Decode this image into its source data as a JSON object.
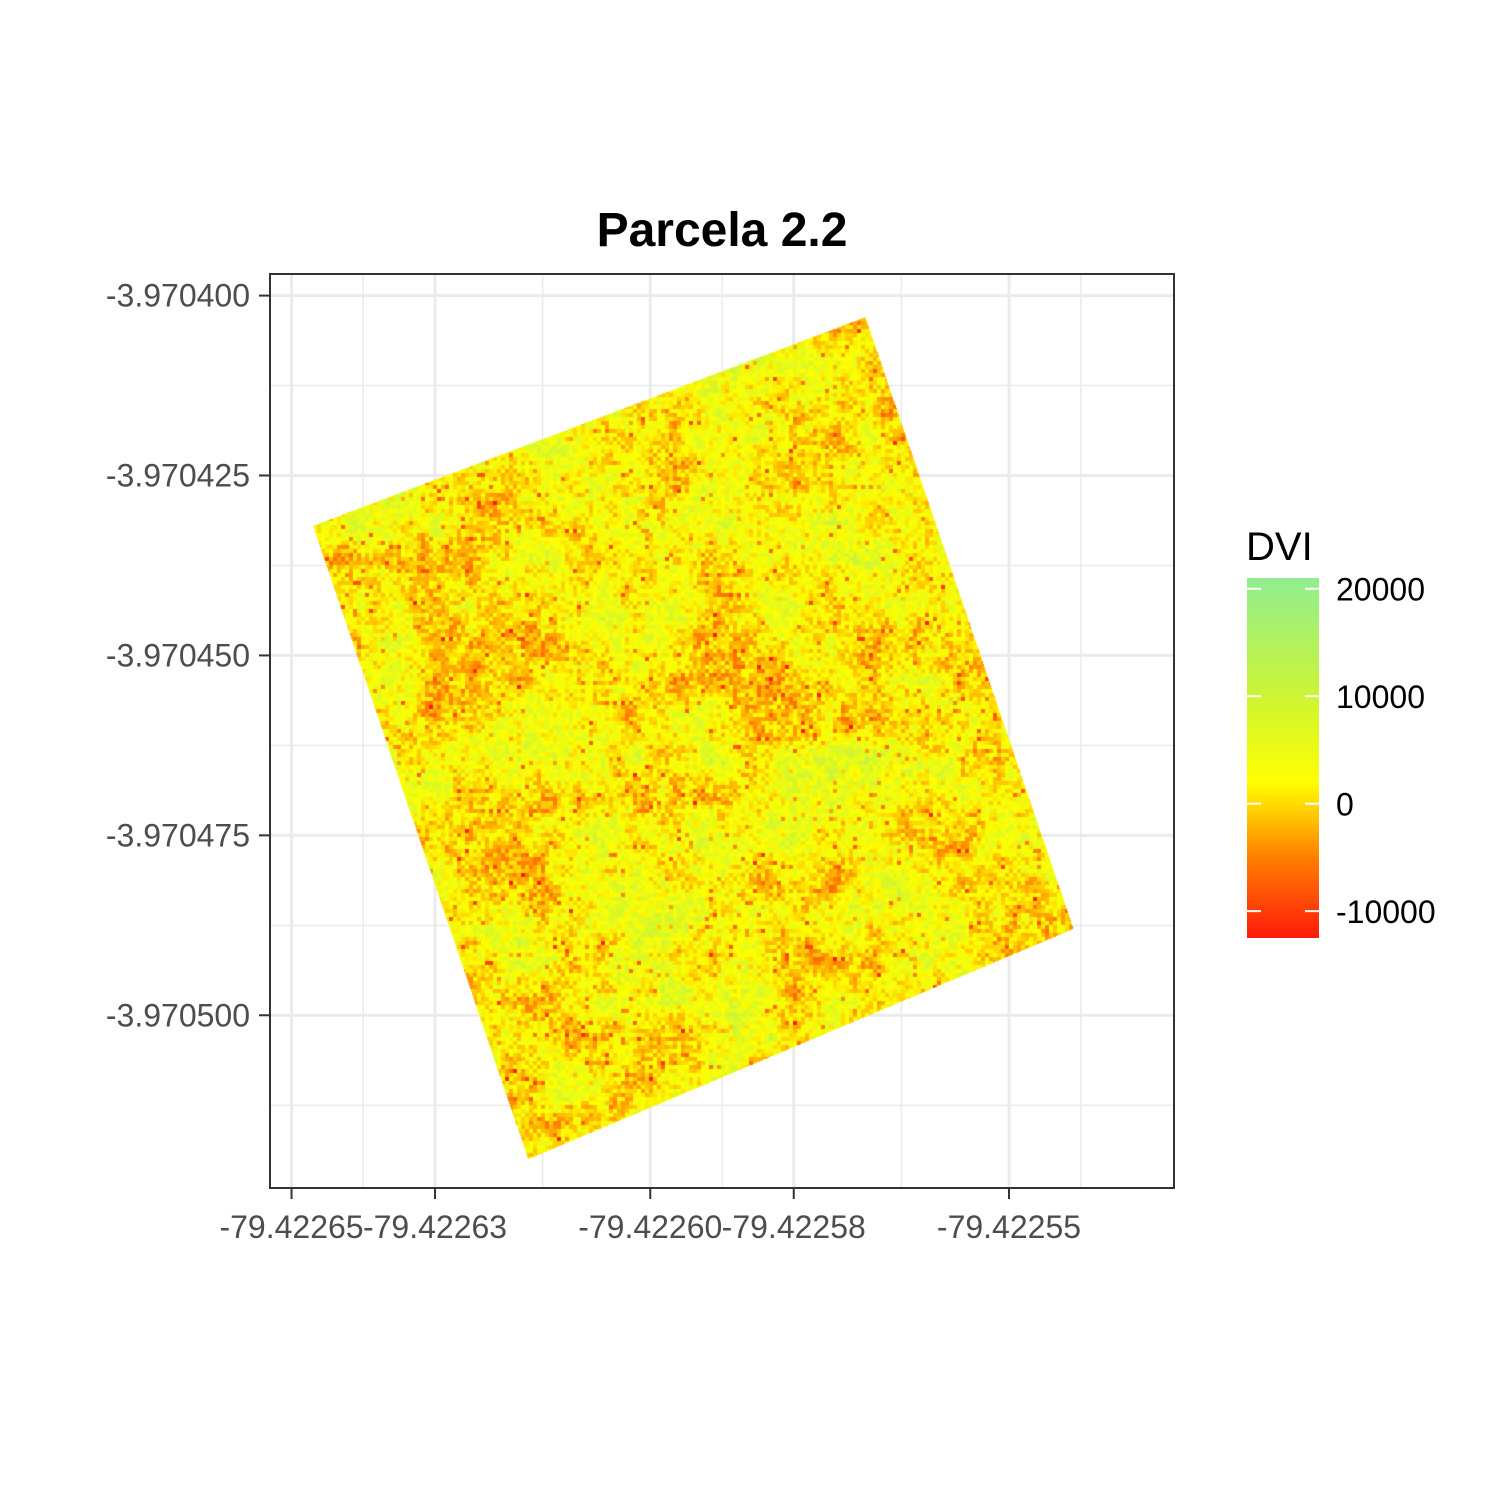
{
  "chart_data": {
    "type": "heatmap",
    "title": "Parcela 2.2",
    "xlabel": "",
    "ylabel": "",
    "x_ticks": [
      -79.42265,
      -79.42263,
      -79.4226,
      -79.42258,
      -79.42255
    ],
    "x_tick_labels": [
      "-79.42265",
      "-79.42263",
      "-79.42260",
      "-79.42258",
      "-79.42255"
    ],
    "y_ticks": [
      -3.9704,
      -3.970425,
      -3.97045,
      -3.970475,
      -3.9705
    ],
    "y_tick_labels": [
      "-3.970400",
      "-3.970425",
      "-3.970450",
      "-3.970475",
      "-3.970500"
    ],
    "xlim": [
      -79.422653,
      -79.422527
    ],
    "ylim": [
      -3.970524,
      -3.970397
    ],
    "grid": true,
    "raster_corners": [
      {
        "x": -79.422647,
        "y": -3.970432
      },
      {
        "x": -79.42257,
        "y": -3.970403
      },
      {
        "x": -79.422541,
        "y": -3.970488
      },
      {
        "x": -79.422617,
        "y": -3.97052
      }
    ],
    "typical_value_range": [
      0,
      14000
    ],
    "legend": {
      "title": "DVI",
      "position": "right",
      "breaks": [
        20000,
        10000,
        0,
        -10000
      ],
      "break_labels": [
        "20000",
        "10000",
        "0",
        "-10000"
      ],
      "limits": [
        -12500,
        21000
      ],
      "colors": [
        {
          "value": -12500,
          "color": "#ff1a0a"
        },
        {
          "value": -5000,
          "color": "#ff8000"
        },
        {
          "value": 2000,
          "color": "#ffff00"
        },
        {
          "value": 10000,
          "color": "#ccf533"
        },
        {
          "value": 21000,
          "color": "#90ee90"
        }
      ]
    }
  }
}
